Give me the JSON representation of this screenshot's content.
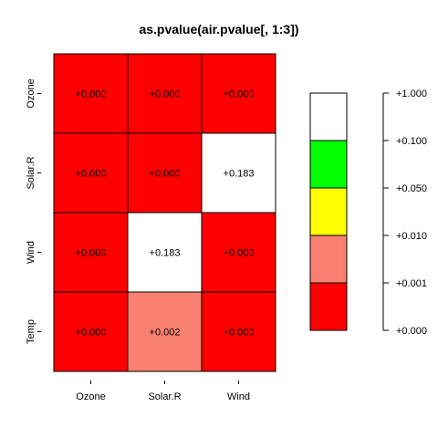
{
  "chart_data": {
    "type": "heatmap",
    "title": "as.pvalue(air.pvalue[, 1:3])",
    "columns": [
      "Ozone",
      "Solar.R",
      "Wind"
    ],
    "rows": [
      "Ozone",
      "Solar.R",
      "Wind",
      "Temp"
    ],
    "cells": [
      [
        "+0.000",
        "+0.000",
        "+0.000"
      ],
      [
        "+0.000",
        "+0.000",
        "+0.183"
      ],
      [
        "+0.000",
        "+0.183",
        "+0.000"
      ],
      [
        "+0.000",
        "+0.002",
        "+0.000"
      ]
    ],
    "colors": {
      "below_0.001": "#ff0000",
      "0.001_to_0.01": "#fa8072",
      "0.01_to_0.05": "#ffff00",
      "0.05_to_0.1": "#00ff00",
      "above_0.1": "#ffffff"
    },
    "legend": {
      "breaks": [
        "+0.000",
        "+0.001",
        "+0.010",
        "+0.050",
        "+0.100",
        "+1.000"
      ],
      "colors_bottom_to_top": [
        "#ff0000",
        "#fa8072",
        "#ffff00",
        "#00ff00",
        "#ffffff"
      ]
    }
  }
}
